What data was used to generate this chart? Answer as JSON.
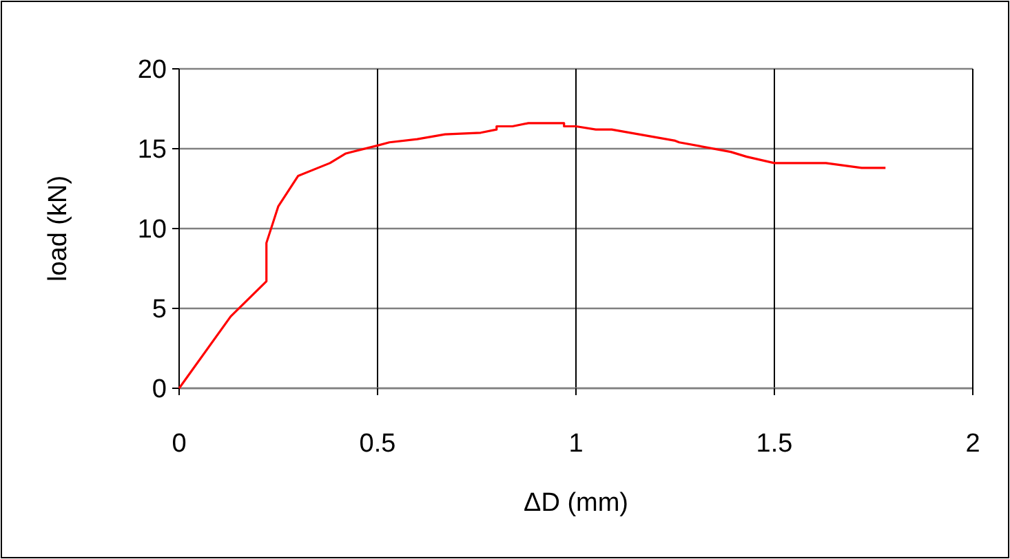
{
  "chart_data": {
    "type": "line",
    "xlabel": "ΔD (mm)",
    "ylabel": "load (kN)",
    "x": [
      0,
      0.13,
      0.22,
      0.22,
      0.25,
      0.3,
      0.38,
      0.42,
      0.5,
      0.53,
      0.6,
      0.67,
      0.76,
      0.8,
      0.8,
      0.84,
      0.88,
      0.97,
      0.97,
      1.0,
      1.05,
      1.09,
      1.25,
      1.26,
      1.39,
      1.43,
      1.5,
      1.63,
      1.72,
      1.78
    ],
    "series": [
      {
        "color": "#ff0000",
        "values": [
          0,
          4.5,
          6.7,
          9.1,
          11.4,
          13.3,
          14.1,
          14.7,
          15.2,
          15.4,
          15.6,
          15.9,
          16.0,
          16.2,
          16.4,
          16.4,
          16.6,
          16.6,
          16.4,
          16.4,
          16.2,
          16.2,
          15.5,
          15.4,
          14.8,
          14.5,
          14.1,
          14.1,
          13.8,
          13.8
        ]
      }
    ],
    "xlim": [
      0,
      2
    ],
    "xticks": [
      0,
      0.5,
      1,
      1.5,
      2
    ],
    "ylim": [
      0,
      20
    ],
    "yticks": [
      0,
      5,
      10,
      15,
      20
    ],
    "grid": true,
    "marker": "none",
    "line_style": "solid"
  }
}
